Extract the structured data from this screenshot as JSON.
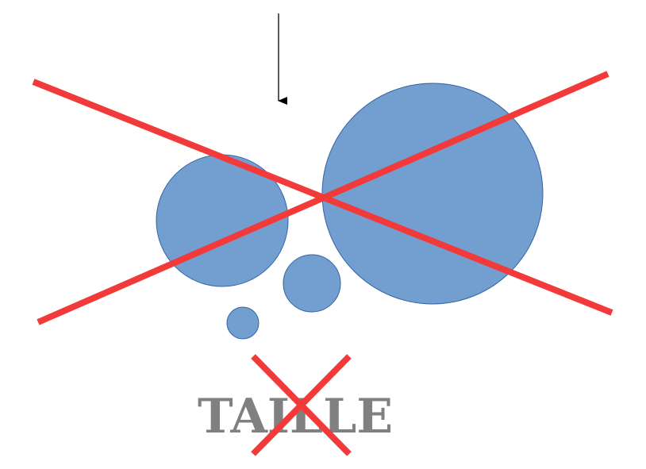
{
  "word": "TAILLE",
  "colors": {
    "circle_fill": "#729fcf",
    "circle_stroke": "#3465a4",
    "cross": "#f33a3a",
    "word": "#808080",
    "arrow": "#000000"
  }
}
